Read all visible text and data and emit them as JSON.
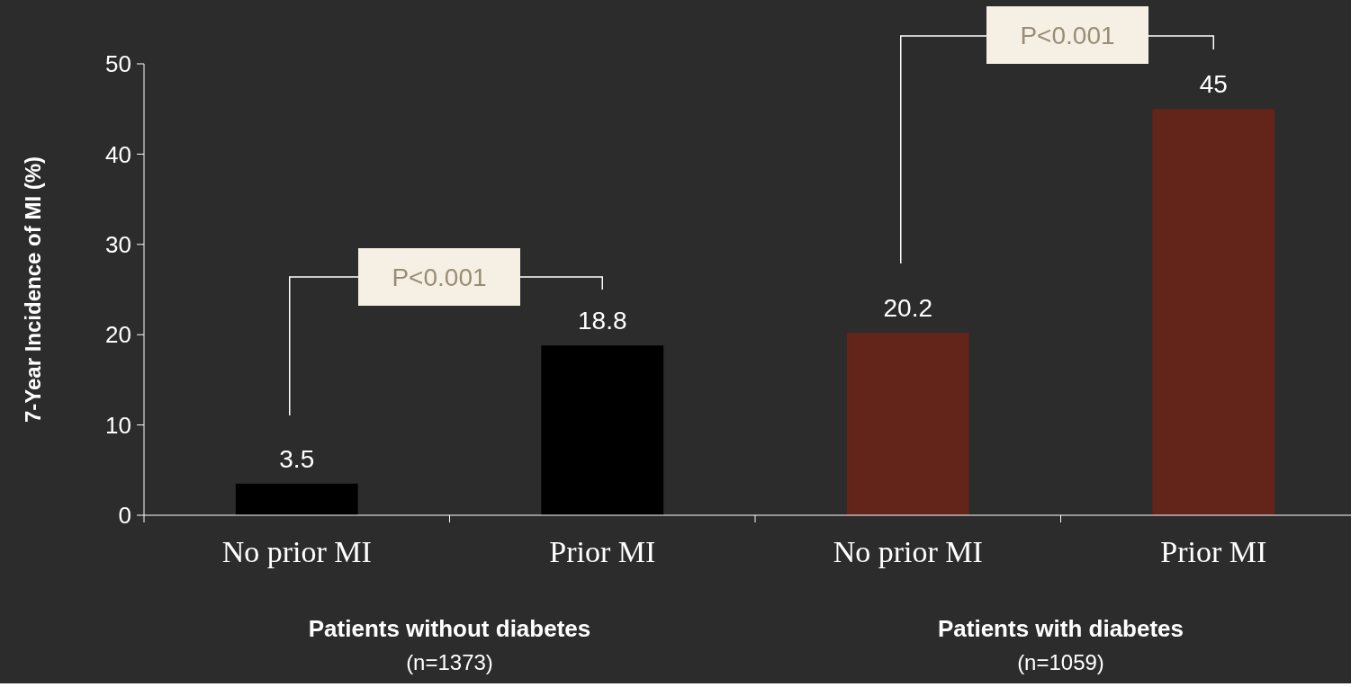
{
  "chart_data": {
    "type": "bar",
    "ylabel": "7-Year Incidence of MI (%)",
    "categories": [
      "No prior MI",
      "Prior MI",
      "No prior MI",
      "Prior MI"
    ],
    "values": [
      3.5,
      18.8,
      20.2,
      45
    ],
    "colors": [
      "#000000",
      "#000000",
      "#63241a",
      "#63241a"
    ],
    "ylim": [
      0,
      50
    ],
    "yticks": [
      0,
      10,
      20,
      30,
      40,
      50
    ],
    "data_labels": true,
    "annotations": [
      "P<0.001",
      "P<0.001",
      "Patients without diabetes",
      "(n=1373)",
      "Patients with diabetes",
      "(n=1059)"
    ]
  }
}
